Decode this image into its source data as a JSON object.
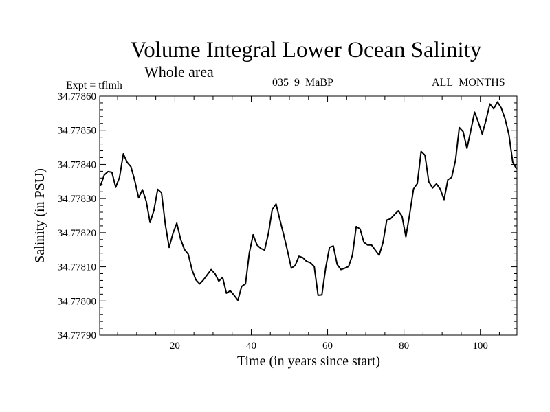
{
  "header": {
    "title": "Volume Integral Lower Ocean Salinity",
    "subtitle": "Whole area",
    "expt": "Expt = tflmh",
    "case": "035_9_MaBP",
    "months": "ALL_MONTHS"
  },
  "chart_data": {
    "type": "line",
    "title": "Volume Integral Lower Ocean Salinity",
    "subtitle": "Whole area",
    "xlabel": "Time (in years since start)",
    "ylabel": "Salinity (in PSU)",
    "xlim": [
      0.3,
      109.6
    ],
    "ylim": [
      34.7779,
      34.7786
    ],
    "xticks": [
      20,
      40,
      60,
      80,
      100
    ],
    "xtick_labels": [
      "20",
      "40",
      "60",
      "80",
      "100"
    ],
    "x_minor_step": 5,
    "yticks": [
      34.7779,
      34.778,
      34.7781,
      34.7782,
      34.7783,
      34.7784,
      34.7785,
      34.7786
    ],
    "ytick_labels": [
      "34.77790",
      "34.77800",
      "34.77810",
      "34.77820",
      "34.77830",
      "34.77840",
      "34.77850",
      "34.77860"
    ],
    "y_minor_step": 2e-05,
    "grid": false,
    "legend": "none",
    "series": [
      {
        "name": "Salinity",
        "color": "#000000",
        "x_start": 0.5,
        "x_step": 1,
        "values": [
          34.778337,
          34.778369,
          34.778379,
          34.778377,
          34.778333,
          34.778362,
          34.778431,
          34.778406,
          34.778393,
          34.778352,
          34.778302,
          34.778326,
          34.778292,
          34.77823,
          34.778265,
          34.778327,
          34.778317,
          34.778224,
          34.778157,
          34.778198,
          34.778228,
          34.778181,
          34.778151,
          34.778137,
          34.778091,
          34.778062,
          34.77805,
          34.778062,
          34.778077,
          34.778092,
          34.77808,
          34.778058,
          34.778069,
          34.778023,
          34.77803,
          34.778017,
          34.778002,
          34.778043,
          34.77805,
          34.778141,
          34.778194,
          34.778164,
          34.778154,
          34.778149,
          34.778198,
          34.778268,
          34.778284,
          34.778238,
          34.778194,
          34.778147,
          34.778096,
          34.778104,
          34.778131,
          34.778127,
          34.778116,
          34.778112,
          34.778101,
          34.778017,
          34.778018,
          34.778097,
          34.778157,
          34.778161,
          34.778107,
          34.778092,
          34.778096,
          34.778101,
          34.778134,
          34.778218,
          34.778211,
          34.778172,
          34.778164,
          34.778164,
          34.778149,
          34.778134,
          34.778171,
          34.778237,
          34.778241,
          34.778253,
          34.778264,
          34.778248,
          34.778188,
          34.778255,
          34.778328,
          34.778344,
          34.778438,
          34.778427,
          34.778349,
          34.778331,
          34.778343,
          34.778328,
          34.778297,
          34.778355,
          34.778362,
          34.778412,
          34.778508,
          34.778496,
          34.778447,
          34.778499,
          34.778553,
          34.778523,
          34.778489,
          34.77853,
          34.778577,
          34.778563,
          34.778583,
          34.778565,
          34.778533,
          34.778487,
          34.778406,
          34.778387
        ]
      }
    ]
  }
}
